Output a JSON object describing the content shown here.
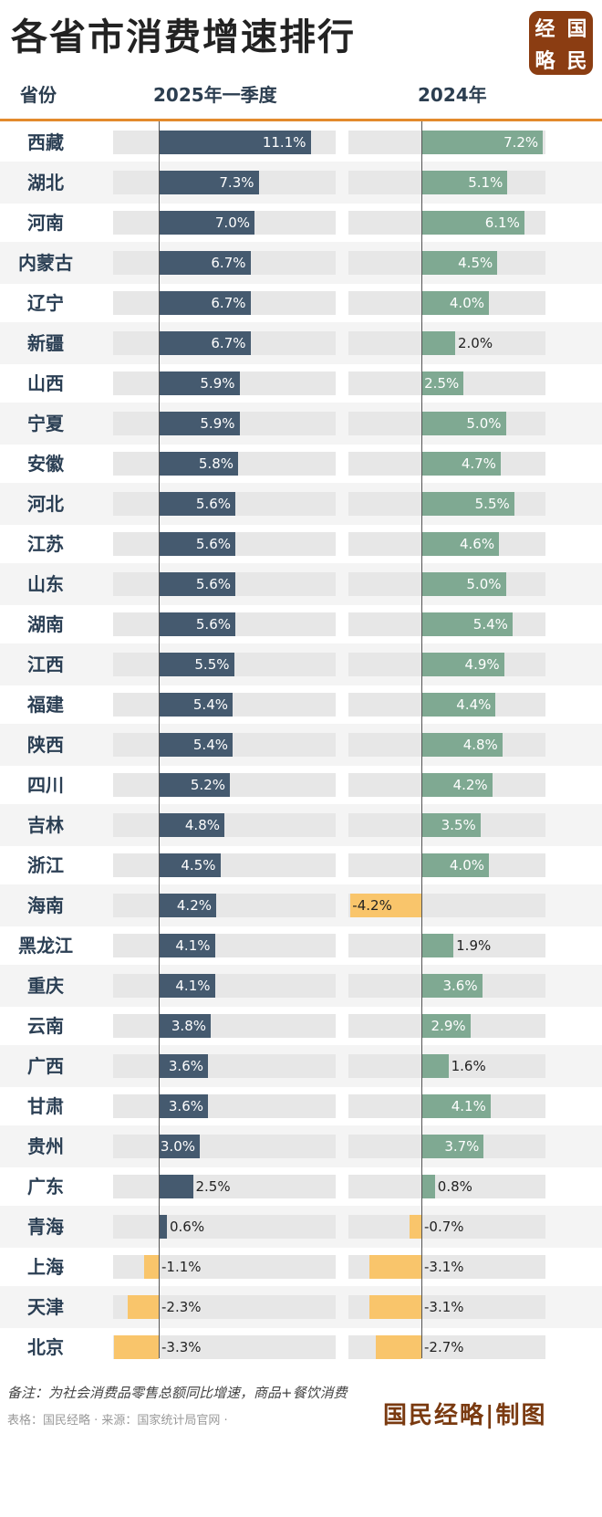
{
  "title": "各省市消费增速排行",
  "logo": [
    "经",
    "国",
    "略",
    "民"
  ],
  "header": {
    "col_province": "省份",
    "col_a": "2025年一季度",
    "col_b": "2024年"
  },
  "colors": {
    "bar_2025": "#455a6f",
    "bar_2024": "#7fa992",
    "negative": "#f9c56b",
    "accent_line": "#e38a2c",
    "brand": "#8b3d12"
  },
  "chart_data": {
    "type": "bar",
    "orientation": "horizontal",
    "categories": [
      "西藏",
      "湖北",
      "河南",
      "内蒙古",
      "辽宁",
      "新疆",
      "山西",
      "宁夏",
      "安徽",
      "河北",
      "江苏",
      "山东",
      "湖南",
      "江西",
      "福建",
      "陕西",
      "四川",
      "吉林",
      "浙江",
      "海南",
      "黑龙江",
      "重庆",
      "云南",
      "广西",
      "甘肃",
      "贵州",
      "广东",
      "青海",
      "上海",
      "天津",
      "北京"
    ],
    "series": [
      {
        "name": "2025年一季度",
        "values": [
          11.1,
          7.3,
          7.0,
          6.7,
          6.7,
          6.7,
          5.9,
          5.9,
          5.8,
          5.6,
          5.6,
          5.6,
          5.6,
          5.5,
          5.4,
          5.4,
          5.2,
          4.8,
          4.5,
          4.2,
          4.1,
          4.1,
          3.8,
          3.6,
          3.6,
          3.0,
          2.5,
          0.6,
          -1.1,
          -2.3,
          -3.3
        ]
      },
      {
        "name": "2024年",
        "values": [
          7.2,
          5.1,
          6.1,
          4.5,
          4.0,
          2.0,
          2.5,
          5.0,
          4.7,
          5.5,
          4.6,
          5.0,
          5.4,
          4.9,
          4.4,
          4.8,
          4.2,
          3.5,
          4.0,
          -4.2,
          1.9,
          3.6,
          2.9,
          1.6,
          4.1,
          3.7,
          0.8,
          -0.7,
          -3.1,
          -3.1,
          -2.7
        ]
      }
    ],
    "labels_a": [
      "11.1%",
      "7.3%",
      "7.0%",
      "6.7%",
      "6.7%",
      "6.7%",
      "5.9%",
      "5.9%",
      "5.8%",
      "5.6%",
      "5.6%",
      "5.6%",
      "5.6%",
      "5.5%",
      "5.4%",
      "5.4%",
      "5.2%",
      "4.8%",
      "4.5%",
      "4.2%",
      "4.1%",
      "4.1%",
      "3.8%",
      "3.6%",
      "3.6%",
      "3.0%",
      "2.5%",
      "0.6%",
      "-1.1%",
      "-2.3%",
      "-3.3%"
    ],
    "labels_b": [
      "7.2%",
      "5.1%",
      "6.1%",
      "4.5%",
      "4.0%",
      "2.0%",
      "2.5%",
      "5.0%",
      "4.7%",
      "5.5%",
      "4.6%",
      "5.0%",
      "5.4%",
      "4.9%",
      "4.4%",
      "4.8%",
      "4.2%",
      "3.5%",
      "4.0%",
      "-4.2%",
      "1.9%",
      "3.6%",
      "2.9%",
      "1.6%",
      "4.1%",
      "3.7%",
      "0.8%",
      "-0.7%",
      "-3.1%",
      "-3.1%",
      "-2.7%"
    ]
  },
  "footer": {
    "note": "备注：为社会消费品零售总额同比增速，商品+餐饮消费",
    "source": "表格：国民经略 · 来源：国家统计局官网 ·",
    "brand": "国民经略|制图"
  }
}
